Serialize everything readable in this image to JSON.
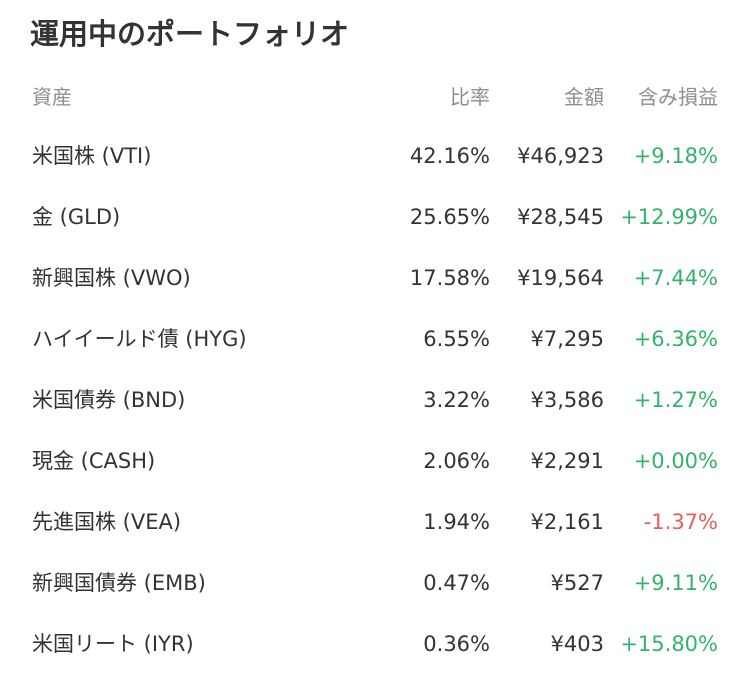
{
  "title": "運用中のポートフォリオ",
  "headers": {
    "asset": "資産",
    "ratio": "比率",
    "amount": "金額",
    "pl": "含み損益"
  },
  "colors": {
    "positive": "#33b36b",
    "negative": "#e5605a",
    "header": "#8e8e93",
    "text": "#333333"
  },
  "rows": [
    {
      "name": "米国株 (VTI)",
      "ratio": "42.16%",
      "amount": "¥46,923",
      "pl": "+9.18%",
      "sign": "pos"
    },
    {
      "name": "金 (GLD)",
      "ratio": "25.65%",
      "amount": "¥28,545",
      "pl": "+12.99%",
      "sign": "pos"
    },
    {
      "name": "新興国株 (VWO)",
      "ratio": "17.58%",
      "amount": "¥19,564",
      "pl": "+7.44%",
      "sign": "pos"
    },
    {
      "name": "ハイイールド債 (HYG)",
      "ratio": "6.55%",
      "amount": "¥7,295",
      "pl": "+6.36%",
      "sign": "pos"
    },
    {
      "name": "米国債券 (BND)",
      "ratio": "3.22%",
      "amount": "¥3,586",
      "pl": "+1.27%",
      "sign": "pos"
    },
    {
      "name": "現金 (CASH)",
      "ratio": "2.06%",
      "amount": "¥2,291",
      "pl": "+0.00%",
      "sign": "pos"
    },
    {
      "name": "先進国株 (VEA)",
      "ratio": "1.94%",
      "amount": "¥2,161",
      "pl": "-1.37%",
      "sign": "neg"
    },
    {
      "name": "新興国債券 (EMB)",
      "ratio": "0.47%",
      "amount": "¥527",
      "pl": "+9.11%",
      "sign": "pos"
    },
    {
      "name": "米国リート (IYR)",
      "ratio": "0.36%",
      "amount": "¥403",
      "pl": "+15.80%",
      "sign": "pos"
    }
  ]
}
